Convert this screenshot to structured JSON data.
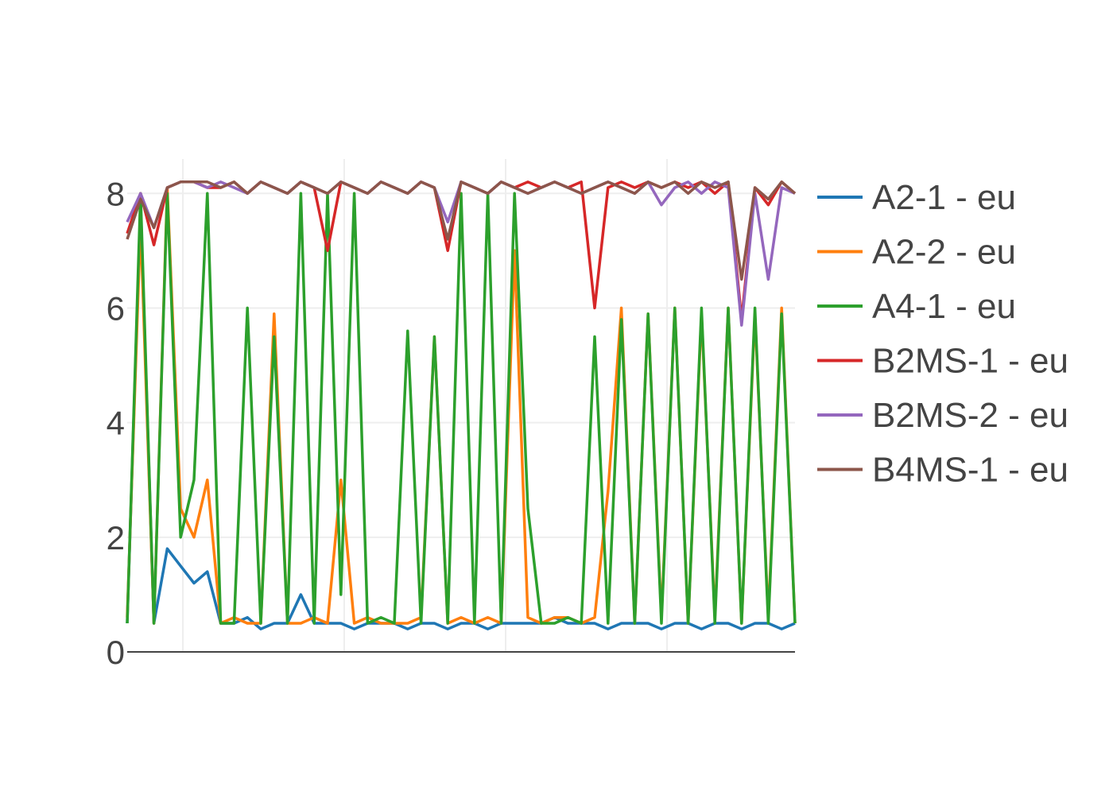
{
  "chart_data": {
    "type": "line",
    "title": "",
    "xlabel": "",
    "ylabel": "",
    "x": [
      0,
      0.02,
      0.04,
      0.06,
      0.08,
      0.1,
      0.12,
      0.14,
      0.16,
      0.18,
      0.2,
      0.22,
      0.24,
      0.26,
      0.28,
      0.3,
      0.32,
      0.34,
      0.36,
      0.38,
      0.4,
      0.42,
      0.44,
      0.46,
      0.48,
      0.5,
      0.52,
      0.54,
      0.56,
      0.58,
      0.6,
      0.62,
      0.64,
      0.66,
      0.68,
      0.7,
      0.72,
      0.74,
      0.76,
      0.78,
      0.8,
      0.82,
      0.84,
      0.86,
      0.88,
      0.9,
      0.92,
      0.94,
      0.96,
      0.98,
      1
    ],
    "xlim": [
      0,
      1
    ],
    "ylim": [
      0,
      8.6
    ],
    "y_ticks": [
      0,
      2,
      4,
      6,
      8
    ],
    "y_tick_labels": [
      "0",
      "2",
      "4",
      "6",
      "8"
    ],
    "grid": true,
    "legend_position": "top-right",
    "series": [
      {
        "name": "A2-1 - eu",
        "color": "#1f77b4",
        "values": [
          0.5,
          7.8,
          0.5,
          1.8,
          1.5,
          1.2,
          1.4,
          0.5,
          0.5,
          0.6,
          0.4,
          0.5,
          0.5,
          1.0,
          0.5,
          0.5,
          0.5,
          0.4,
          0.5,
          0.5,
          0.5,
          0.4,
          0.5,
          0.5,
          0.4,
          0.5,
          0.5,
          0.4,
          0.5,
          0.5,
          0.5,
          0.5,
          0.6,
          0.5,
          0.5,
          0.5,
          0.4,
          0.5,
          0.5,
          0.5,
          0.4,
          0.5,
          0.5,
          0.4,
          0.5,
          0.5,
          0.4,
          0.5,
          0.5,
          0.4,
          0.5
        ]
      },
      {
        "name": "A2-2 - eu",
        "color": "#ff7f0e",
        "values": [
          0.6,
          7.5,
          0.5,
          8.1,
          2.5,
          2.0,
          3.0,
          0.5,
          0.6,
          0.5,
          0.5,
          5.9,
          0.5,
          0.5,
          0.6,
          0.5,
          3.0,
          0.5,
          0.6,
          0.5,
          0.5,
          0.5,
          0.6,
          5.5,
          0.5,
          0.6,
          0.5,
          0.6,
          0.5,
          7.0,
          0.6,
          0.5,
          0.6,
          0.6,
          0.5,
          0.6,
          2.8,
          6.0,
          0.5,
          5.9,
          0.6,
          6.0,
          0.5,
          5.9,
          0.6,
          6.0,
          0.5,
          5.9,
          0.6,
          6.0,
          0.5
        ]
      },
      {
        "name": "A4-1 - eu",
        "color": "#2ca02c",
        "values": [
          0.5,
          8.0,
          0.5,
          8.0,
          2.0,
          3.0,
          8.0,
          0.5,
          0.5,
          6.0,
          0.5,
          5.5,
          0.5,
          8.0,
          0.5,
          8.0,
          1.0,
          8.0,
          0.5,
          0.6,
          0.5,
          5.6,
          0.5,
          5.5,
          0.5,
          8.0,
          0.5,
          8.0,
          0.5,
          8.0,
          2.5,
          0.5,
          0.5,
          0.6,
          0.5,
          5.5,
          0.5,
          5.8,
          0.5,
          5.9,
          0.5,
          6.0,
          0.5,
          6.0,
          0.5,
          6.0,
          0.5,
          6.0,
          0.5,
          5.9,
          0.5
        ]
      },
      {
        "name": "B2MS-1 - eu",
        "color": "#d62728",
        "values": [
          7.3,
          8.0,
          7.1,
          8.1,
          8.2,
          8.2,
          8.1,
          8.1,
          8.2,
          8.0,
          8.2,
          8.1,
          8.0,
          8.2,
          8.1,
          7.0,
          8.2,
          8.1,
          8.0,
          8.2,
          8.1,
          8.0,
          8.2,
          8.1,
          7.0,
          8.2,
          8.1,
          8.0,
          8.2,
          8.1,
          8.2,
          8.1,
          8.2,
          8.1,
          8.2,
          6.0,
          8.1,
          8.2,
          8.1,
          8.2,
          8.1,
          8.2,
          8.1,
          8.2,
          8.0,
          8.2,
          5.8,
          8.1,
          7.8,
          8.2,
          8.0
        ]
      },
      {
        "name": "B2MS-2 - eu",
        "color": "#9467bd",
        "values": [
          7.5,
          8.0,
          7.4,
          8.1,
          8.2,
          8.2,
          8.1,
          8.2,
          8.1,
          8.0,
          8.2,
          8.1,
          8.0,
          8.2,
          8.1,
          8.0,
          8.2,
          8.1,
          8.0,
          8.2,
          8.1,
          8.0,
          8.2,
          8.1,
          7.5,
          8.2,
          8.1,
          8.0,
          8.2,
          8.1,
          8.0,
          8.1,
          8.2,
          8.1,
          8.0,
          8.1,
          8.2,
          8.1,
          8.0,
          8.2,
          7.8,
          8.1,
          8.2,
          8.0,
          8.2,
          8.1,
          5.7,
          8.0,
          6.5,
          8.1,
          8.0
        ]
      },
      {
        "name": "B4MS-1 - eu",
        "color": "#8c564b",
        "values": [
          7.2,
          7.9,
          7.4,
          8.1,
          8.2,
          8.2,
          8.2,
          8.1,
          8.2,
          8.0,
          8.2,
          8.1,
          8.0,
          8.2,
          8.1,
          8.0,
          8.2,
          8.1,
          8.0,
          8.2,
          8.1,
          8.0,
          8.2,
          8.1,
          7.2,
          8.2,
          8.1,
          8.0,
          8.2,
          8.1,
          8.0,
          8.1,
          8.2,
          8.1,
          8.0,
          8.1,
          8.2,
          8.1,
          8.0,
          8.2,
          8.1,
          8.2,
          8.0,
          8.2,
          8.1,
          8.2,
          6.5,
          8.1,
          7.9,
          8.2,
          8.0
        ]
      }
    ]
  }
}
